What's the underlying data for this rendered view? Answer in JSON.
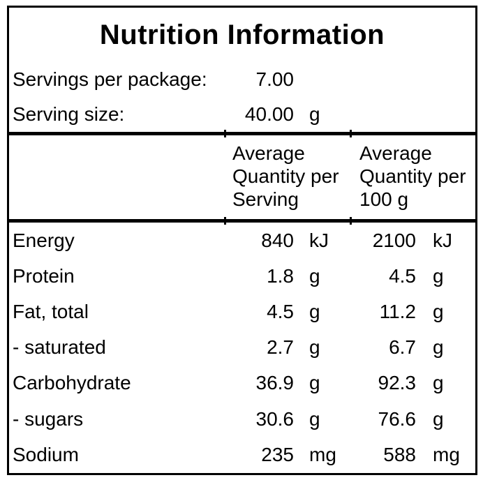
{
  "label": {
    "title": "Nutrition Information",
    "info_rows": [
      {
        "label": "Servings per package:",
        "value": "7.00",
        "unit": ""
      },
      {
        "label": "Serving size:",
        "value": "40.00",
        "unit": "g"
      }
    ],
    "columns": {
      "serving_header": "Average Quantity per Serving",
      "per100g_header": "Average Quantity per 100 g"
    },
    "nutrient_rows": [
      {
        "name": "Energy",
        "serving_value": "840",
        "serving_unit": "kJ",
        "per100g_value": "2100",
        "per100g_unit": "kJ"
      },
      {
        "name": "Protein",
        "serving_value": "1.8",
        "serving_unit": "g",
        "per100g_value": "4.5",
        "per100g_unit": "g"
      },
      {
        "name": "Fat, total",
        "serving_value": "4.5",
        "serving_unit": "g",
        "per100g_value": "11.2",
        "per100g_unit": "g"
      },
      {
        "name": "- saturated",
        "serving_value": "2.7",
        "serving_unit": "g",
        "per100g_value": "6.7",
        "per100g_unit": "g"
      },
      {
        "name": "Carbohydrate",
        "serving_value": "36.9",
        "serving_unit": "g",
        "per100g_value": "92.3",
        "per100g_unit": "g"
      },
      {
        "name": "- sugars",
        "serving_value": "30.6",
        "serving_unit": "g",
        "per100g_value": "76.6",
        "per100g_unit": "g"
      },
      {
        "name": "Sodium",
        "serving_value": "235",
        "serving_unit": "mg",
        "per100g_value": "588",
        "per100g_unit": "mg"
      }
    ],
    "colors": {
      "background": "#ffffff",
      "text": "#000000",
      "border": "#000000"
    }
  }
}
